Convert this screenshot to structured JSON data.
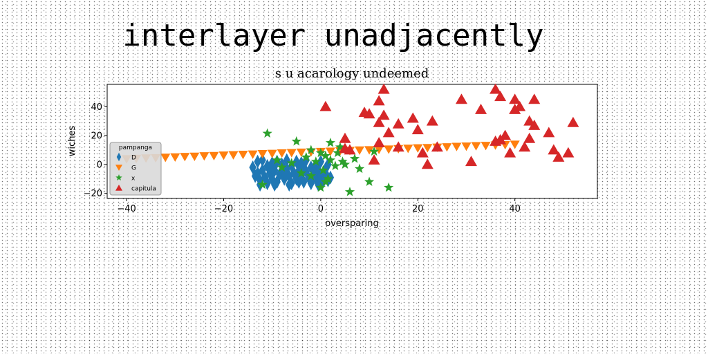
{
  "page": {
    "title": "interlayer unadjacently"
  },
  "chart_data": {
    "type": "scatter",
    "title": "s u acarology undeemed",
    "xlabel": "oversparing",
    "ylabel": "wiches",
    "xlim": [
      -44,
      57
    ],
    "ylim": [
      -23.5,
      55.5
    ],
    "xticks": [
      -40,
      -20,
      0,
      20,
      40
    ],
    "yticks": [
      -20,
      0,
      20,
      40
    ],
    "grid": false,
    "legend": {
      "title": "pampanga",
      "placement": "lower-left"
    },
    "series": [
      {
        "name": "D",
        "marker": "thin_diamond",
        "color": "#1f77b4",
        "points": [
          [
            -14,
            -2
          ],
          [
            -13.5,
            -8
          ],
          [
            -13,
            2
          ],
          [
            -13,
            -6
          ],
          [
            -12.5,
            -11
          ],
          [
            -12,
            -4
          ],
          [
            -12,
            3
          ],
          [
            -11.5,
            -9
          ],
          [
            -11,
            -1
          ],
          [
            -11,
            -13
          ],
          [
            -10.5,
            -6
          ],
          [
            -10,
            1
          ],
          [
            -10,
            -10
          ],
          [
            -9.5,
            -4
          ],
          [
            -9,
            2
          ],
          [
            -9,
            -12
          ],
          [
            -8.5,
            -7
          ],
          [
            -8,
            0
          ],
          [
            -8,
            -5
          ],
          [
            -7.5,
            -10
          ],
          [
            -7,
            -3
          ],
          [
            -7,
            3
          ],
          [
            -6.5,
            -8
          ],
          [
            -6,
            -13
          ],
          [
            -6,
            -1
          ],
          [
            -5.5,
            -6
          ],
          [
            -5,
            2
          ],
          [
            -5,
            -10
          ],
          [
            -4.5,
            -4
          ],
          [
            -4,
            -8
          ],
          [
            -4,
            1
          ],
          [
            -3.5,
            -12
          ],
          [
            -3,
            -5
          ],
          [
            -3,
            3
          ],
          [
            -2.5,
            -9
          ],
          [
            -2,
            -2
          ],
          [
            -2,
            -13
          ],
          [
            -1.5,
            -6
          ],
          [
            -1,
            0
          ],
          [
            -1,
            -10
          ],
          [
            -0.5,
            -4
          ],
          [
            0,
            2
          ],
          [
            0,
            -8
          ],
          [
            0.5,
            -12
          ],
          [
            1,
            -3
          ],
          [
            1,
            -6
          ],
          [
            1.5,
            0
          ],
          [
            2,
            -9
          ],
          [
            -12.5,
            -14
          ],
          [
            -9.5,
            -14
          ],
          [
            -6.5,
            -14
          ],
          [
            -3.5,
            -3
          ],
          [
            -0.5,
            -14
          ],
          [
            -10.5,
            -2
          ],
          [
            -7.5,
            -6
          ],
          [
            -4.5,
            -12
          ],
          [
            -1.5,
            -8
          ],
          [
            1.5,
            -11
          ]
        ]
      },
      {
        "name": "G",
        "marker": "triangle_down",
        "color": "#ff7f0e",
        "points": [
          [
            -40,
            4
          ],
          [
            -38,
            4.2
          ],
          [
            -36,
            4.5
          ],
          [
            -34,
            4.7
          ],
          [
            -32,
            5
          ],
          [
            -30,
            5.2
          ],
          [
            -28,
            5.5
          ],
          [
            -26,
            5.7
          ],
          [
            -24,
            6
          ],
          [
            -22,
            6.2
          ],
          [
            -20,
            6.5
          ],
          [
            -18,
            6.7
          ],
          [
            -16,
            7
          ],
          [
            -14,
            7.2
          ],
          [
            -12,
            7.5
          ],
          [
            -10,
            7.7
          ],
          [
            -8,
            8
          ],
          [
            -6,
            8.2
          ],
          [
            -4,
            8.5
          ],
          [
            -2,
            8.7
          ],
          [
            0,
            9
          ],
          [
            2,
            9.2
          ],
          [
            4,
            9.5
          ],
          [
            6,
            9.7
          ],
          [
            8,
            10
          ],
          [
            10,
            10.2
          ],
          [
            12,
            10.5
          ],
          [
            14,
            10.7
          ],
          [
            16,
            11
          ],
          [
            18,
            11.2
          ],
          [
            20,
            11.5
          ],
          [
            22,
            11.7
          ],
          [
            24,
            12
          ],
          [
            26,
            12.2
          ],
          [
            28,
            12.5
          ],
          [
            30,
            12.7
          ],
          [
            32,
            13
          ],
          [
            34,
            13.2
          ],
          [
            36,
            13.5
          ],
          [
            38,
            13.7
          ],
          [
            40,
            14
          ]
        ]
      },
      {
        "name": "x",
        "marker": "star",
        "color": "#2ca02c",
        "points": [
          [
            -11,
            21.5
          ],
          [
            -5,
            16
          ],
          [
            -12,
            -14
          ],
          [
            -9,
            3
          ],
          [
            -8,
            -2
          ],
          [
            -6,
            1
          ],
          [
            -4,
            -6
          ],
          [
            -3,
            5
          ],
          [
            -2,
            -8
          ],
          [
            -1,
            2
          ],
          [
            0,
            8
          ],
          [
            0.5,
            -4
          ],
          [
            1,
            6
          ],
          [
            1.5,
            -10
          ],
          [
            2,
            15
          ],
          [
            2,
            3
          ],
          [
            3,
            -1
          ],
          [
            3.5,
            8
          ],
          [
            4,
            12
          ],
          [
            4.5,
            2
          ],
          [
            6,
            -19
          ],
          [
            7,
            4
          ],
          [
            8,
            -3
          ],
          [
            10,
            -12
          ],
          [
            11,
            9
          ],
          [
            14,
            -16
          ],
          [
            0,
            -16
          ],
          [
            -2,
            10
          ],
          [
            1,
            -12
          ],
          [
            5,
            0
          ]
        ]
      },
      {
        "name": "capitula",
        "marker": "triangle_up",
        "color": "#d62728",
        "points": [
          [
            1,
            40
          ],
          [
            5,
            18
          ],
          [
            5,
            11
          ],
          [
            6,
            10
          ],
          [
            9,
            36
          ],
          [
            10,
            35
          ],
          [
            11,
            3
          ],
          [
            12,
            44
          ],
          [
            12,
            29
          ],
          [
            12,
            15
          ],
          [
            13,
            52
          ],
          [
            13,
            34
          ],
          [
            14,
            22
          ],
          [
            16,
            28
          ],
          [
            16,
            12
          ],
          [
            19,
            32
          ],
          [
            20,
            24
          ],
          [
            21,
            8
          ],
          [
            22,
            0
          ],
          [
            23,
            30
          ],
          [
            24,
            12
          ],
          [
            29,
            45
          ],
          [
            31,
            2
          ],
          [
            33,
            38
          ],
          [
            36,
            52
          ],
          [
            36,
            16
          ],
          [
            37,
            47
          ],
          [
            37,
            17
          ],
          [
            38,
            20
          ],
          [
            39,
            8
          ],
          [
            40,
            38
          ],
          [
            40,
            45
          ],
          [
            41,
            40
          ],
          [
            42,
            12
          ],
          [
            43,
            18
          ],
          [
            43,
            30
          ],
          [
            44,
            27
          ],
          [
            44,
            45
          ],
          [
            47,
            22
          ],
          [
            48,
            10
          ],
          [
            49,
            5
          ],
          [
            51,
            8
          ],
          [
            52,
            29
          ]
        ]
      }
    ]
  }
}
